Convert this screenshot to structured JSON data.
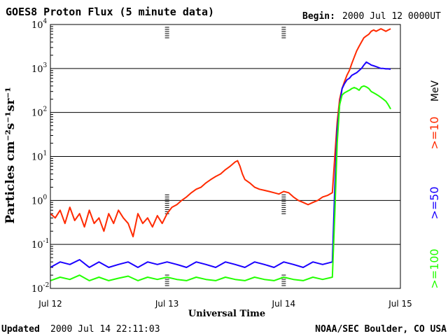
{
  "header": {
    "title": "GOES8 Proton Flux (5 minute data)",
    "begin_label": "Begin:",
    "begin_value": "2000 Jul 12 0000UT"
  },
  "footer": {
    "updated_label": "Updated",
    "updated_value": "2000 Jul 14 22:11:03",
    "credit": "NOAA/SEC Boulder, CO USA"
  },
  "colors": {
    "ge10": "#ff2a00",
    "ge50": "#1a00ff",
    "ge100": "#22ff00",
    "grid": "#000000"
  },
  "chart_data": {
    "type": "line",
    "title": "GOES8 Proton Flux (5 minute data)",
    "xlabel": "Universal Time",
    "ylabel": "Particles cm⁻²s⁻¹sr⁻¹",
    "yscale": "log",
    "ylim": [
      0.01,
      10000
    ],
    "xlim": [
      0,
      72
    ],
    "x_units": "hours since 2000 Jul 12 0000UT",
    "x_ticks": [
      {
        "x": 0,
        "label": "Jul 12"
      },
      {
        "x": 24,
        "label": "Jul 13"
      },
      {
        "x": 48,
        "label": "Jul 14"
      },
      {
        "x": 72,
        "label": "Jul 15"
      }
    ],
    "y_ticks": [
      {
        "value": 0.01,
        "base": "10",
        "exp": "-2"
      },
      {
        "value": 0.1,
        "base": "10",
        "exp": "-1"
      },
      {
        "value": 1,
        "base": "10",
        "exp": "0"
      },
      {
        "value": 10,
        "base": "10",
        "exp": "1"
      },
      {
        "value": 100,
        "base": "10",
        "exp": "2"
      },
      {
        "value": 1000,
        "base": "10",
        "exp": "3"
      },
      {
        "value": 10000,
        "base": "10",
        "exp": "4"
      }
    ],
    "grid": "horizontal at decades",
    "legend_placement": "right, vertical",
    "legend_unit": "MeV",
    "series": [
      {
        "name": ">=10",
        "color": "#ff2a00",
        "x": [
          0,
          1,
          2,
          3,
          4,
          5,
          6,
          7,
          8,
          9,
          10,
          11,
          12,
          13,
          14,
          15,
          16,
          17,
          18,
          19,
          20,
          21,
          22,
          23,
          24,
          25,
          26,
          27,
          28,
          29,
          30,
          31,
          32,
          33,
          34,
          35,
          36,
          37,
          38,
          38.5,
          39,
          39.5,
          40,
          41,
          42,
          43,
          44,
          45,
          46,
          47,
          48,
          49,
          50,
          51,
          52,
          53,
          54,
          55,
          56,
          57,
          58,
          58.5,
          59,
          59.5,
          60,
          60.5,
          61,
          61.5,
          62,
          62.5,
          63,
          63.5,
          64,
          64.5,
          65,
          65.5,
          66,
          66.5,
          67,
          67.5,
          68,
          68.5,
          69,
          69.5,
          70
        ],
        "y": [
          0.5,
          0.4,
          0.6,
          0.3,
          0.7,
          0.35,
          0.5,
          0.25,
          0.6,
          0.3,
          0.4,
          0.2,
          0.5,
          0.3,
          0.6,
          0.4,
          0.3,
          0.15,
          0.5,
          0.3,
          0.4,
          0.25,
          0.45,
          0.3,
          0.5,
          0.7,
          0.8,
          1.0,
          1.2,
          1.5,
          1.8,
          2.0,
          2.5,
          3.0,
          3.5,
          4.0,
          5.0,
          6.0,
          7.5,
          8.0,
          6.0,
          4.0,
          3.0,
          2.5,
          2.0,
          1.8,
          1.7,
          1.6,
          1.5,
          1.4,
          1.6,
          1.5,
          1.2,
          1.0,
          0.9,
          0.8,
          0.9,
          1.0,
          1.2,
          1.3,
          1.5,
          10,
          60,
          200,
          350,
          500,
          700,
          900,
          1300,
          1800,
          2500,
          3200,
          4000,
          5000,
          5500,
          6000,
          7000,
          7500,
          7000,
          7500,
          8000,
          7500,
          7000,
          7500,
          8000
        ]
      },
      {
        "name": ">=50",
        "color": "#1a00ff",
        "x": [
          0,
          2,
          4,
          6,
          8,
          10,
          12,
          14,
          16,
          18,
          20,
          22,
          24,
          26,
          28,
          30,
          32,
          34,
          36,
          38,
          40,
          42,
          44,
          46,
          48,
          50,
          52,
          54,
          56,
          58,
          58.5,
          59,
          59.5,
          60,
          60.5,
          61,
          61.5,
          62,
          62.5,
          63,
          63.5,
          64,
          64.5,
          65,
          65.5,
          66,
          66.5,
          67,
          67.5,
          68,
          68.5,
          69,
          69.5,
          70
        ],
        "y": [
          0.03,
          0.04,
          0.035,
          0.045,
          0.03,
          0.04,
          0.03,
          0.035,
          0.04,
          0.03,
          0.04,
          0.035,
          0.04,
          0.035,
          0.03,
          0.04,
          0.035,
          0.03,
          0.04,
          0.035,
          0.03,
          0.04,
          0.035,
          0.03,
          0.04,
          0.035,
          0.03,
          0.04,
          0.035,
          0.04,
          2,
          40,
          150,
          350,
          450,
          550,
          600,
          700,
          750,
          800,
          900,
          1000,
          1200,
          1400,
          1300,
          1200,
          1150,
          1100,
          1050,
          1000,
          1000,
          980,
          980,
          960
        ]
      },
      {
        "name": ">=100",
        "color": "#22ff00",
        "x": [
          0,
          2,
          4,
          6,
          8,
          10,
          12,
          14,
          16,
          18,
          20,
          22,
          24,
          26,
          28,
          30,
          32,
          34,
          36,
          38,
          40,
          42,
          44,
          46,
          48,
          50,
          52,
          54,
          56,
          58,
          58.5,
          59,
          59.5,
          60,
          60.5,
          61,
          61.5,
          62,
          62.5,
          63,
          63.5,
          64,
          64.5,
          65,
          65.5,
          66,
          66.5,
          67,
          67.5,
          68,
          68.5,
          69,
          69.5,
          70
        ],
        "y": [
          0.015,
          0.018,
          0.016,
          0.02,
          0.015,
          0.018,
          0.015,
          0.017,
          0.019,
          0.015,
          0.018,
          0.016,
          0.018,
          0.016,
          0.015,
          0.018,
          0.016,
          0.015,
          0.018,
          0.016,
          0.015,
          0.018,
          0.016,
          0.015,
          0.018,
          0.016,
          0.015,
          0.018,
          0.016,
          0.018,
          0.5,
          20,
          150,
          250,
          280,
          300,
          320,
          350,
          370,
          350,
          320,
          380,
          400,
          380,
          350,
          300,
          280,
          260,
          240,
          220,
          200,
          180,
          150,
          120
        ]
      }
    ]
  }
}
